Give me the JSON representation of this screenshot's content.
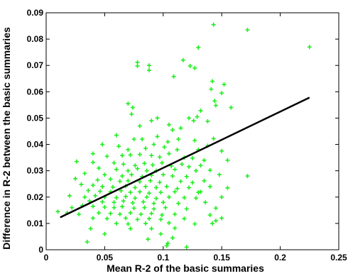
{
  "chart_data": {
    "type": "scatter",
    "xlabel": "Mean R-2 of the basic summaries",
    "ylabel": "Difference in R-2 between the basic summaries",
    "xlim": [
      0,
      0.25
    ],
    "ylim": [
      0,
      0.09
    ],
    "x_ticks": [
      "0",
      "0.05",
      "0.1",
      "0.15",
      "0.2",
      "0.25"
    ],
    "y_ticks": [
      "0",
      "0.01",
      "0.02",
      "0.03",
      "0.04",
      "0.05",
      "0.06",
      "0.07",
      "0.08",
      "0.09"
    ],
    "x_tick_values": [
      0,
      0.05,
      0.1,
      0.15,
      0.2,
      0.25
    ],
    "y_tick_values": [
      0,
      0.01,
      0.02,
      0.03,
      0.04,
      0.05,
      0.06,
      0.07,
      0.08,
      0.09
    ],
    "grid": false,
    "marker": "plus",
    "point_color": "#22ee22",
    "line_color": "#000000",
    "fit_line": {
      "x": [
        0.012,
        0.225
      ],
      "y": [
        0.0123,
        0.0578
      ]
    },
    "points": [
      [
        0.143,
        0.0855
      ],
      [
        0.172,
        0.0835
      ],
      [
        0.225,
        0.077
      ],
      [
        0.13,
        0.0768
      ],
      [
        0.078,
        0.0712
      ],
      [
        0.088,
        0.07
      ],
      [
        0.078,
        0.0698
      ],
      [
        0.117,
        0.072
      ],
      [
        0.123,
        0.0698
      ],
      [
        0.127,
        0.069
      ],
      [
        0.109,
        0.0658
      ],
      [
        0.088,
        0.0682
      ],
      [
        0.142,
        0.064
      ],
      [
        0.152,
        0.0628
      ],
      [
        0.144,
        0.0565
      ],
      [
        0.15,
        0.0595
      ],
      [
        0.141,
        0.061
      ],
      [
        0.132,
        0.0528
      ],
      [
        0.145,
        0.0548
      ],
      [
        0.158,
        0.054
      ],
      [
        0.07,
        0.0555
      ],
      [
        0.074,
        0.054
      ],
      [
        0.073,
        0.0515
      ],
      [
        0.08,
        0.047
      ],
      [
        0.09,
        0.049
      ],
      [
        0.105,
        0.0475
      ],
      [
        0.122,
        0.05
      ],
      [
        0.129,
        0.0505
      ],
      [
        0.126,
        0.049
      ],
      [
        0.138,
        0.0488
      ],
      [
        0.115,
        0.0462
      ],
      [
        0.06,
        0.0435
      ],
      [
        0.075,
        0.042
      ],
      [
        0.082,
        0.042
      ],
      [
        0.095,
        0.043
      ],
      [
        0.104,
        0.041
      ],
      [
        0.113,
        0.042
      ],
      [
        0.127,
        0.0415
      ],
      [
        0.143,
        0.0422
      ],
      [
        0.048,
        0.04
      ],
      [
        0.062,
        0.0393
      ],
      [
        0.07,
        0.038
      ],
      [
        0.085,
        0.0385
      ],
      [
        0.092,
        0.04
      ],
      [
        0.101,
        0.039
      ],
      [
        0.112,
        0.038
      ],
      [
        0.13,
        0.038
      ],
      [
        0.138,
        0.0395
      ],
      [
        0.15,
        0.0375
      ],
      [
        0.04,
        0.0365
      ],
      [
        0.052,
        0.0355
      ],
      [
        0.065,
        0.0358
      ],
      [
        0.072,
        0.036
      ],
      [
        0.08,
        0.0362
      ],
      [
        0.09,
        0.0358
      ],
      [
        0.097,
        0.0352
      ],
      [
        0.105,
        0.0365
      ],
      [
        0.118,
        0.035
      ],
      [
        0.125,
        0.0348
      ],
      [
        0.135,
        0.034
      ],
      [
        0.155,
        0.034
      ],
      [
        0.026,
        0.0335
      ],
      [
        0.04,
        0.0332
      ],
      [
        0.058,
        0.033
      ],
      [
        0.066,
        0.0325
      ],
      [
        0.076,
        0.032
      ],
      [
        0.084,
        0.0328
      ],
      [
        0.091,
        0.0322
      ],
      [
        0.099,
        0.033
      ],
      [
        0.107,
        0.0318
      ],
      [
        0.116,
        0.0325
      ],
      [
        0.122,
        0.0315
      ],
      [
        0.132,
        0.032
      ],
      [
        0.045,
        0.031
      ],
      [
        0.06,
        0.0305
      ],
      [
        0.07,
        0.03
      ],
      [
        0.078,
        0.0308
      ],
      [
        0.086,
        0.03
      ],
      [
        0.094,
        0.03
      ],
      [
        0.11,
        0.0305
      ],
      [
        0.128,
        0.03
      ],
      [
        0.14,
        0.0302
      ],
      [
        0.033,
        0.029
      ],
      [
        0.05,
        0.0285
      ],
      [
        0.065,
        0.028
      ],
      [
        0.073,
        0.0285
      ],
      [
        0.082,
        0.0278
      ],
      [
        0.09,
        0.0283
      ],
      [
        0.1,
        0.0285
      ],
      [
        0.108,
        0.028
      ],
      [
        0.12,
        0.0278
      ],
      [
        0.148,
        0.0285
      ],
      [
        0.172,
        0.028
      ],
      [
        0.025,
        0.027
      ],
      [
        0.044,
        0.0265
      ],
      [
        0.055,
        0.0268
      ],
      [
        0.063,
        0.026
      ],
      [
        0.07,
        0.0262
      ],
      [
        0.08,
        0.0258
      ],
      [
        0.089,
        0.0262
      ],
      [
        0.097,
        0.0256
      ],
      [
        0.115,
        0.026
      ],
      [
        0.125,
        0.0255
      ],
      [
        0.135,
        0.0262
      ],
      [
        0.03,
        0.0248
      ],
      [
        0.04,
        0.0245
      ],
      [
        0.048,
        0.024
      ],
      [
        0.057,
        0.0238
      ],
      [
        0.068,
        0.0242
      ],
      [
        0.076,
        0.0236
      ],
      [
        0.085,
        0.024
      ],
      [
        0.094,
        0.0236
      ],
      [
        0.103,
        0.024
      ],
      [
        0.112,
        0.0232
      ],
      [
        0.122,
        0.0236
      ],
      [
        0.14,
        0.024
      ],
      [
        0.155,
        0.0235
      ],
      [
        0.036,
        0.0225
      ],
      [
        0.046,
        0.0222
      ],
      [
        0.055,
        0.022
      ],
      [
        0.064,
        0.0224
      ],
      [
        0.072,
        0.0218
      ],
      [
        0.08,
        0.022
      ],
      [
        0.088,
        0.0215
      ],
      [
        0.098,
        0.0218
      ],
      [
        0.11,
        0.022
      ],
      [
        0.13,
        0.0218
      ],
      [
        0.02,
        0.0205
      ],
      [
        0.033,
        0.02
      ],
      [
        0.042,
        0.0205
      ],
      [
        0.05,
        0.02
      ],
      [
        0.06,
        0.0198
      ],
      [
        0.068,
        0.0202
      ],
      [
        0.076,
        0.0196
      ],
      [
        0.086,
        0.02
      ],
      [
        0.094,
        0.0195
      ],
      [
        0.105,
        0.02
      ],
      [
        0.118,
        0.0198
      ],
      [
        0.128,
        0.0196
      ],
      [
        0.15,
        0.02
      ],
      [
        0.037,
        0.0185
      ],
      [
        0.048,
        0.0182
      ],
      [
        0.058,
        0.018
      ],
      [
        0.066,
        0.0185
      ],
      [
        0.074,
        0.0178
      ],
      [
        0.083,
        0.0182
      ],
      [
        0.092,
        0.0176
      ],
      [
        0.1,
        0.018
      ],
      [
        0.113,
        0.0176
      ],
      [
        0.136,
        0.018
      ],
      [
        0.01,
        0.0145
      ],
      [
        0.022,
        0.016
      ],
      [
        0.031,
        0.0168
      ],
      [
        0.04,
        0.0165
      ],
      [
        0.05,
        0.0162
      ],
      [
        0.058,
        0.016
      ],
      [
        0.065,
        0.0164
      ],
      [
        0.075,
        0.0158
      ],
      [
        0.084,
        0.016
      ],
      [
        0.092,
        0.0155
      ],
      [
        0.102,
        0.016
      ],
      [
        0.12,
        0.0155
      ],
      [
        0.145,
        0.0158
      ],
      [
        0.018,
        0.014
      ],
      [
        0.028,
        0.0135
      ],
      [
        0.045,
        0.014
      ],
      [
        0.055,
        0.0138
      ],
      [
        0.063,
        0.0135
      ],
      [
        0.072,
        0.014
      ],
      [
        0.081,
        0.0135
      ],
      [
        0.09,
        0.0138
      ],
      [
        0.099,
        0.0132
      ],
      [
        0.11,
        0.0135
      ],
      [
        0.14,
        0.0132
      ],
      [
        0.04,
        0.012
      ],
      [
        0.052,
        0.0118
      ],
      [
        0.068,
        0.012
      ],
      [
        0.078,
        0.0115
      ],
      [
        0.088,
        0.0118
      ],
      [
        0.098,
        0.0115
      ],
      [
        0.118,
        0.0118
      ],
      [
        0.15,
        0.012
      ],
      [
        0.06,
        0.01
      ],
      [
        0.07,
        0.0098
      ],
      [
        0.085,
        0.01
      ],
      [
        0.105,
        0.0102
      ],
      [
        0.127,
        0.0098
      ],
      [
        0.142,
        0.01
      ],
      [
        0.145,
        0.011
      ],
      [
        0.038,
        0.008
      ],
      [
        0.072,
        0.008
      ],
      [
        0.09,
        0.008
      ],
      [
        0.11,
        0.0082
      ],
      [
        0.05,
        0.006
      ],
      [
        0.098,
        0.006
      ],
      [
        0.087,
        0.004
      ],
      [
        0.108,
        0.0045
      ],
      [
        0.104,
        0.0025
      ],
      [
        0.035,
        0.003
      ],
      [
        0.103,
        0.0015
      ],
      [
        0.12,
        0.001
      ],
      [
        0.132,
        0.022
      ],
      [
        0.095,
        0.05
      ],
      [
        0.108,
        0.0455
      ]
    ]
  }
}
